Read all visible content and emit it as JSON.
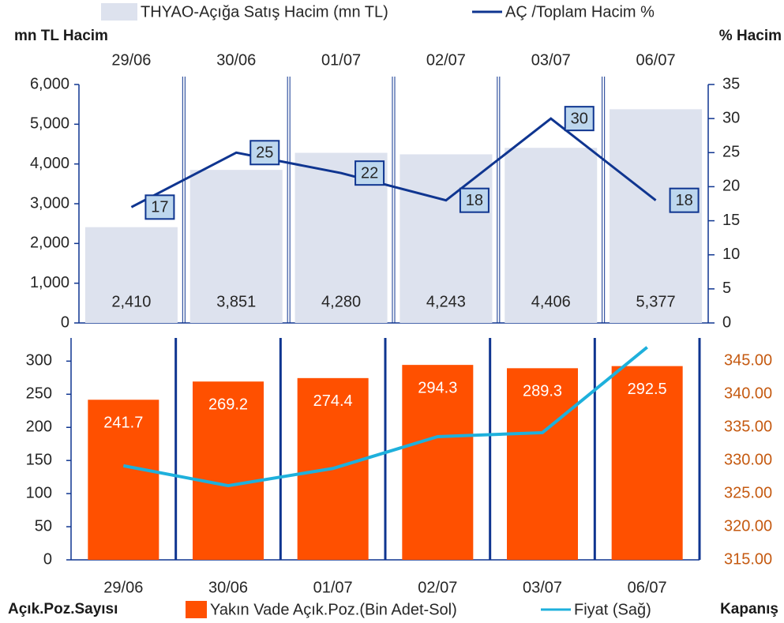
{
  "chart_data": [
    {
      "type": "bar",
      "legend": "top",
      "ylabel": "mn TL Hacim",
      "y2label": "% Hacim",
      "categories": [
        "29/06",
        "30/06",
        "01/07",
        "02/07",
        "03/07",
        "06/07"
      ],
      "series": [
        {
          "name": "THYAO-Açığa Satış Hacim (mn TL)",
          "type": "bar",
          "axis": "y",
          "color": "#dde2ee",
          "values": [
            2410,
            3851,
            4280,
            4243,
            4406,
            5377
          ],
          "value_labels": [
            "2,410",
            "3,851",
            "4,280",
            "4,243",
            "4,406",
            "5,377"
          ]
        },
        {
          "name": "AÇ /Toplam Hacim %",
          "type": "line",
          "axis": "y2",
          "color": "#0f3590",
          "values": [
            17,
            25,
            22,
            18,
            30,
            18
          ]
        }
      ],
      "ylim": [
        0,
        6000
      ],
      "yticks": [
        0,
        {
          "value": 1000,
          "label": "1,000"
        },
        {
          "value": 2000,
          "label": "2,000"
        },
        {
          "value": 3000,
          "label": "3,000"
        },
        {
          "value": 4000,
          "label": "4,000"
        },
        {
          "value": 5000,
          "label": "5,000"
        },
        {
          "value": 6000,
          "label": "6,000"
        }
      ],
      "y2lim": [
        0,
        35
      ],
      "y2ticks": [
        0,
        5,
        10,
        15,
        20,
        25,
        30,
        35
      ]
    },
    {
      "type": "bar",
      "legend": "bottom",
      "ylabel": "Açık.Poz.Sayısı",
      "y2label": "Kapanış",
      "categories": [
        "29/06",
        "30/06",
        "01/07",
        "02/07",
        "03/07",
        "06/07"
      ],
      "series": [
        {
          "name": "Yakın Vade Açık.Poz.(Bin Adet-Sol)",
          "type": "bar",
          "axis": "y",
          "color": "#ff5000",
          "values": [
            241.7,
            269.2,
            274.4,
            294.3,
            289.3,
            292.5
          ]
        },
        {
          "name": "Fiyat (Sağ)",
          "type": "line",
          "axis": "y2",
          "color": "#1eb0dc",
          "values": [
            329.2,
            326.2,
            328.8,
            333.6,
            334.2,
            347.1
          ]
        }
      ],
      "ylim": [
        0,
        335
      ],
      "yticks": [
        0,
        50,
        100,
        150,
        200,
        250,
        300
      ],
      "y2lim": [
        315,
        348.5
      ],
      "y2ticks": [
        {
          "value": 315,
          "label": "315.00"
        },
        {
          "value": 320,
          "label": "320.00"
        },
        {
          "value": 325,
          "label": "325.00"
        },
        {
          "value": 330,
          "label": "330.00"
        },
        {
          "value": 335,
          "label": "335.00"
        },
        {
          "value": 340,
          "label": "340.00"
        },
        {
          "value": 345,
          "label": "345.00"
        }
      ],
      "y2color": "#c55a11"
    }
  ]
}
